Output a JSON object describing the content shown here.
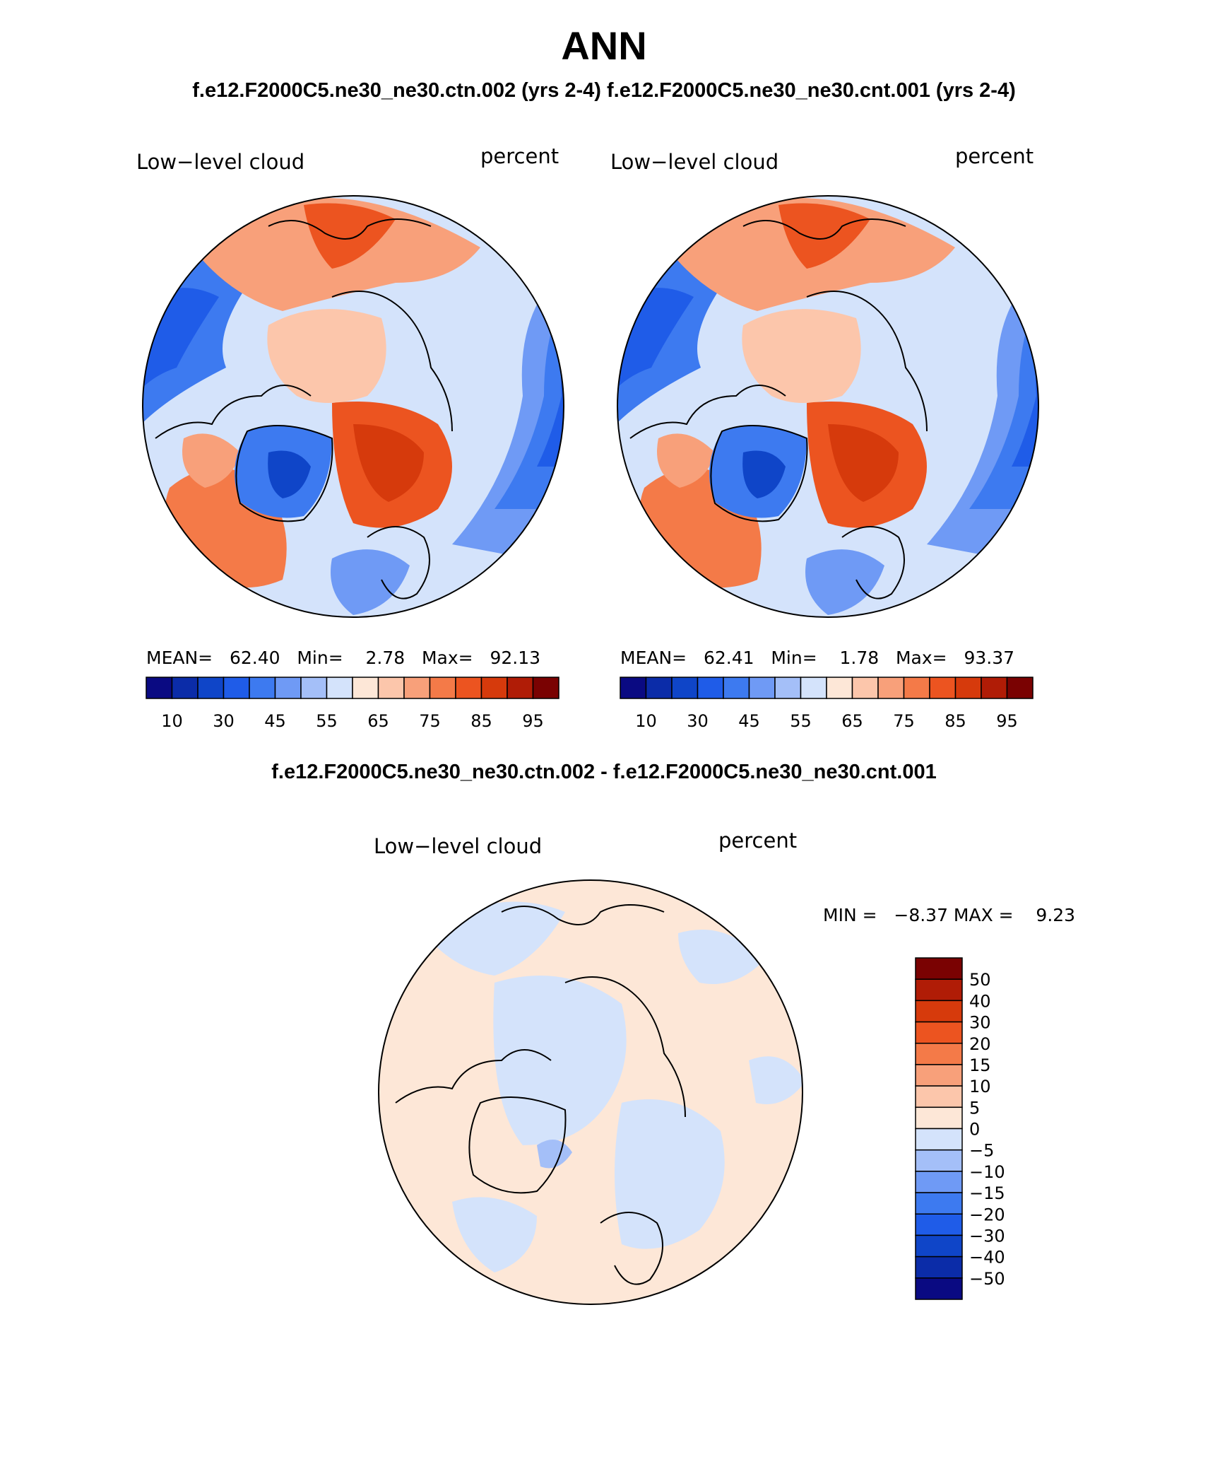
{
  "title": "ANN",
  "subtitle": "f.e12.F2000C5.ne30_ne30.ctn.002 (yrs 2-4) f.e12.F2000C5.ne30_ne30.cnt.001 (yrs 2-4)",
  "panels": [
    {
      "variable": "Low−level cloud",
      "units": "percent",
      "stats_text": "MEAN=   62.40   Min=    2.78   Max=   92.13",
      "stats": {
        "mean": 62.4,
        "min": 2.78,
        "max": 92.13
      }
    },
    {
      "variable": "Low−level cloud",
      "units": "percent",
      "stats_text": "MEAN=   62.41   Min=    1.78   Max=   93.37",
      "stats": {
        "mean": 62.41,
        "min": 1.78,
        "max": 93.37
      }
    }
  ],
  "colorbar_abs": {
    "tick_labels": [
      "10",
      "30",
      "45",
      "55",
      "65",
      "75",
      "85",
      "95"
    ],
    "colors": [
      "#0a0a82",
      "#0b2ca8",
      "#0f45c8",
      "#1f5ce8",
      "#3d7af0",
      "#6f9af5",
      "#a4bff8",
      "#d4e3fb",
      "#fde7d7",
      "#fcc6ab",
      "#f8a07a",
      "#f47a48",
      "#ec5420",
      "#d63a0c",
      "#b01c06",
      "#7a0202"
    ]
  },
  "difference": {
    "title": "f.e12.F2000C5.ne30_ne30.ctn.002 - f.e12.F2000C5.ne30_ne30.cnt.001",
    "variable": "Low−level cloud",
    "units": "percent",
    "minmax_text": "MIN =   −8.37 MAX =    9.23",
    "min": -8.37,
    "max": 9.23
  },
  "colorbar_diff": {
    "labels": [
      "50",
      "40",
      "30",
      "20",
      "15",
      "10",
      "5",
      "0",
      "−5",
      "−10",
      "−15",
      "−20",
      "−30",
      "−40",
      "−50"
    ],
    "colors": [
      "#7a0202",
      "#b01c06",
      "#d63a0c",
      "#ec5420",
      "#f47a48",
      "#f8a07a",
      "#fcc6ab",
      "#fde7d7",
      "#d4e3fb",
      "#a4bff8",
      "#6f9af5",
      "#3d7af0",
      "#1f5ce8",
      "#0f45c8",
      "#0b2ca8",
      "#0a0a82"
    ]
  }
}
